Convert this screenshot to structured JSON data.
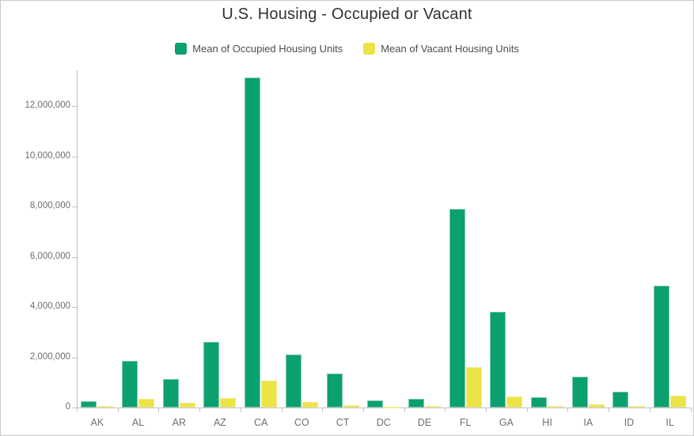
{
  "title": "U.S. Housing - Occupied or Vacant",
  "legend": [
    {
      "label": "Mean of Occupied Housing Units",
      "color": "#0ba06f"
    },
    {
      "label": "Mean of Vacant Housing Units",
      "color": "#ece345"
    }
  ],
  "colors": {
    "occupied_fill": "#0ba06f",
    "occupied_border": "#7fccab",
    "vacant_fill": "#ece345",
    "vacant_border": "#f2eb90",
    "axis": "#c2c2c2",
    "axis_text": "#6e6e6e",
    "title_text": "#313131",
    "legend_text": "#4d4d4d"
  },
  "chart_data": {
    "type": "bar",
    "title": "U.S. Housing - Occupied or Vacant",
    "xlabel": "",
    "ylabel": "",
    "grid": false,
    "legend_position": "top",
    "categories": [
      "AK",
      "AL",
      "AR",
      "AZ",
      "CA",
      "CO",
      "CT",
      "DC",
      "DE",
      "FL",
      "GA",
      "HI",
      "IA",
      "ID",
      "IL"
    ],
    "series": [
      {
        "name": "Mean of Occupied Housing Units",
        "color": "#0ba06f",
        "values": [
          250000,
          1870000,
          1130000,
          2620000,
          13140000,
          2100000,
          1360000,
          270000,
          340000,
          7920000,
          3800000,
          420000,
          1240000,
          620000,
          4860000
        ]
      },
      {
        "name": "Mean of Vacant Housing Units",
        "color": "#ece345",
        "values": [
          50000,
          355000,
          180000,
          370000,
          1080000,
          205000,
          90000,
          30000,
          60000,
          1600000,
          455000,
          55000,
          115000,
          65000,
          460000
        ]
      }
    ],
    "ylim": [
      0,
      13350000
    ],
    "yticks": [
      0,
      2000000,
      4000000,
      6000000,
      8000000,
      10000000,
      12000000
    ],
    "ytick_labels": [
      "0",
      "2,000,000",
      "4,000,000",
      "6,000,000",
      "8,000,000",
      "10,000,000",
      "12,000,000"
    ]
  }
}
